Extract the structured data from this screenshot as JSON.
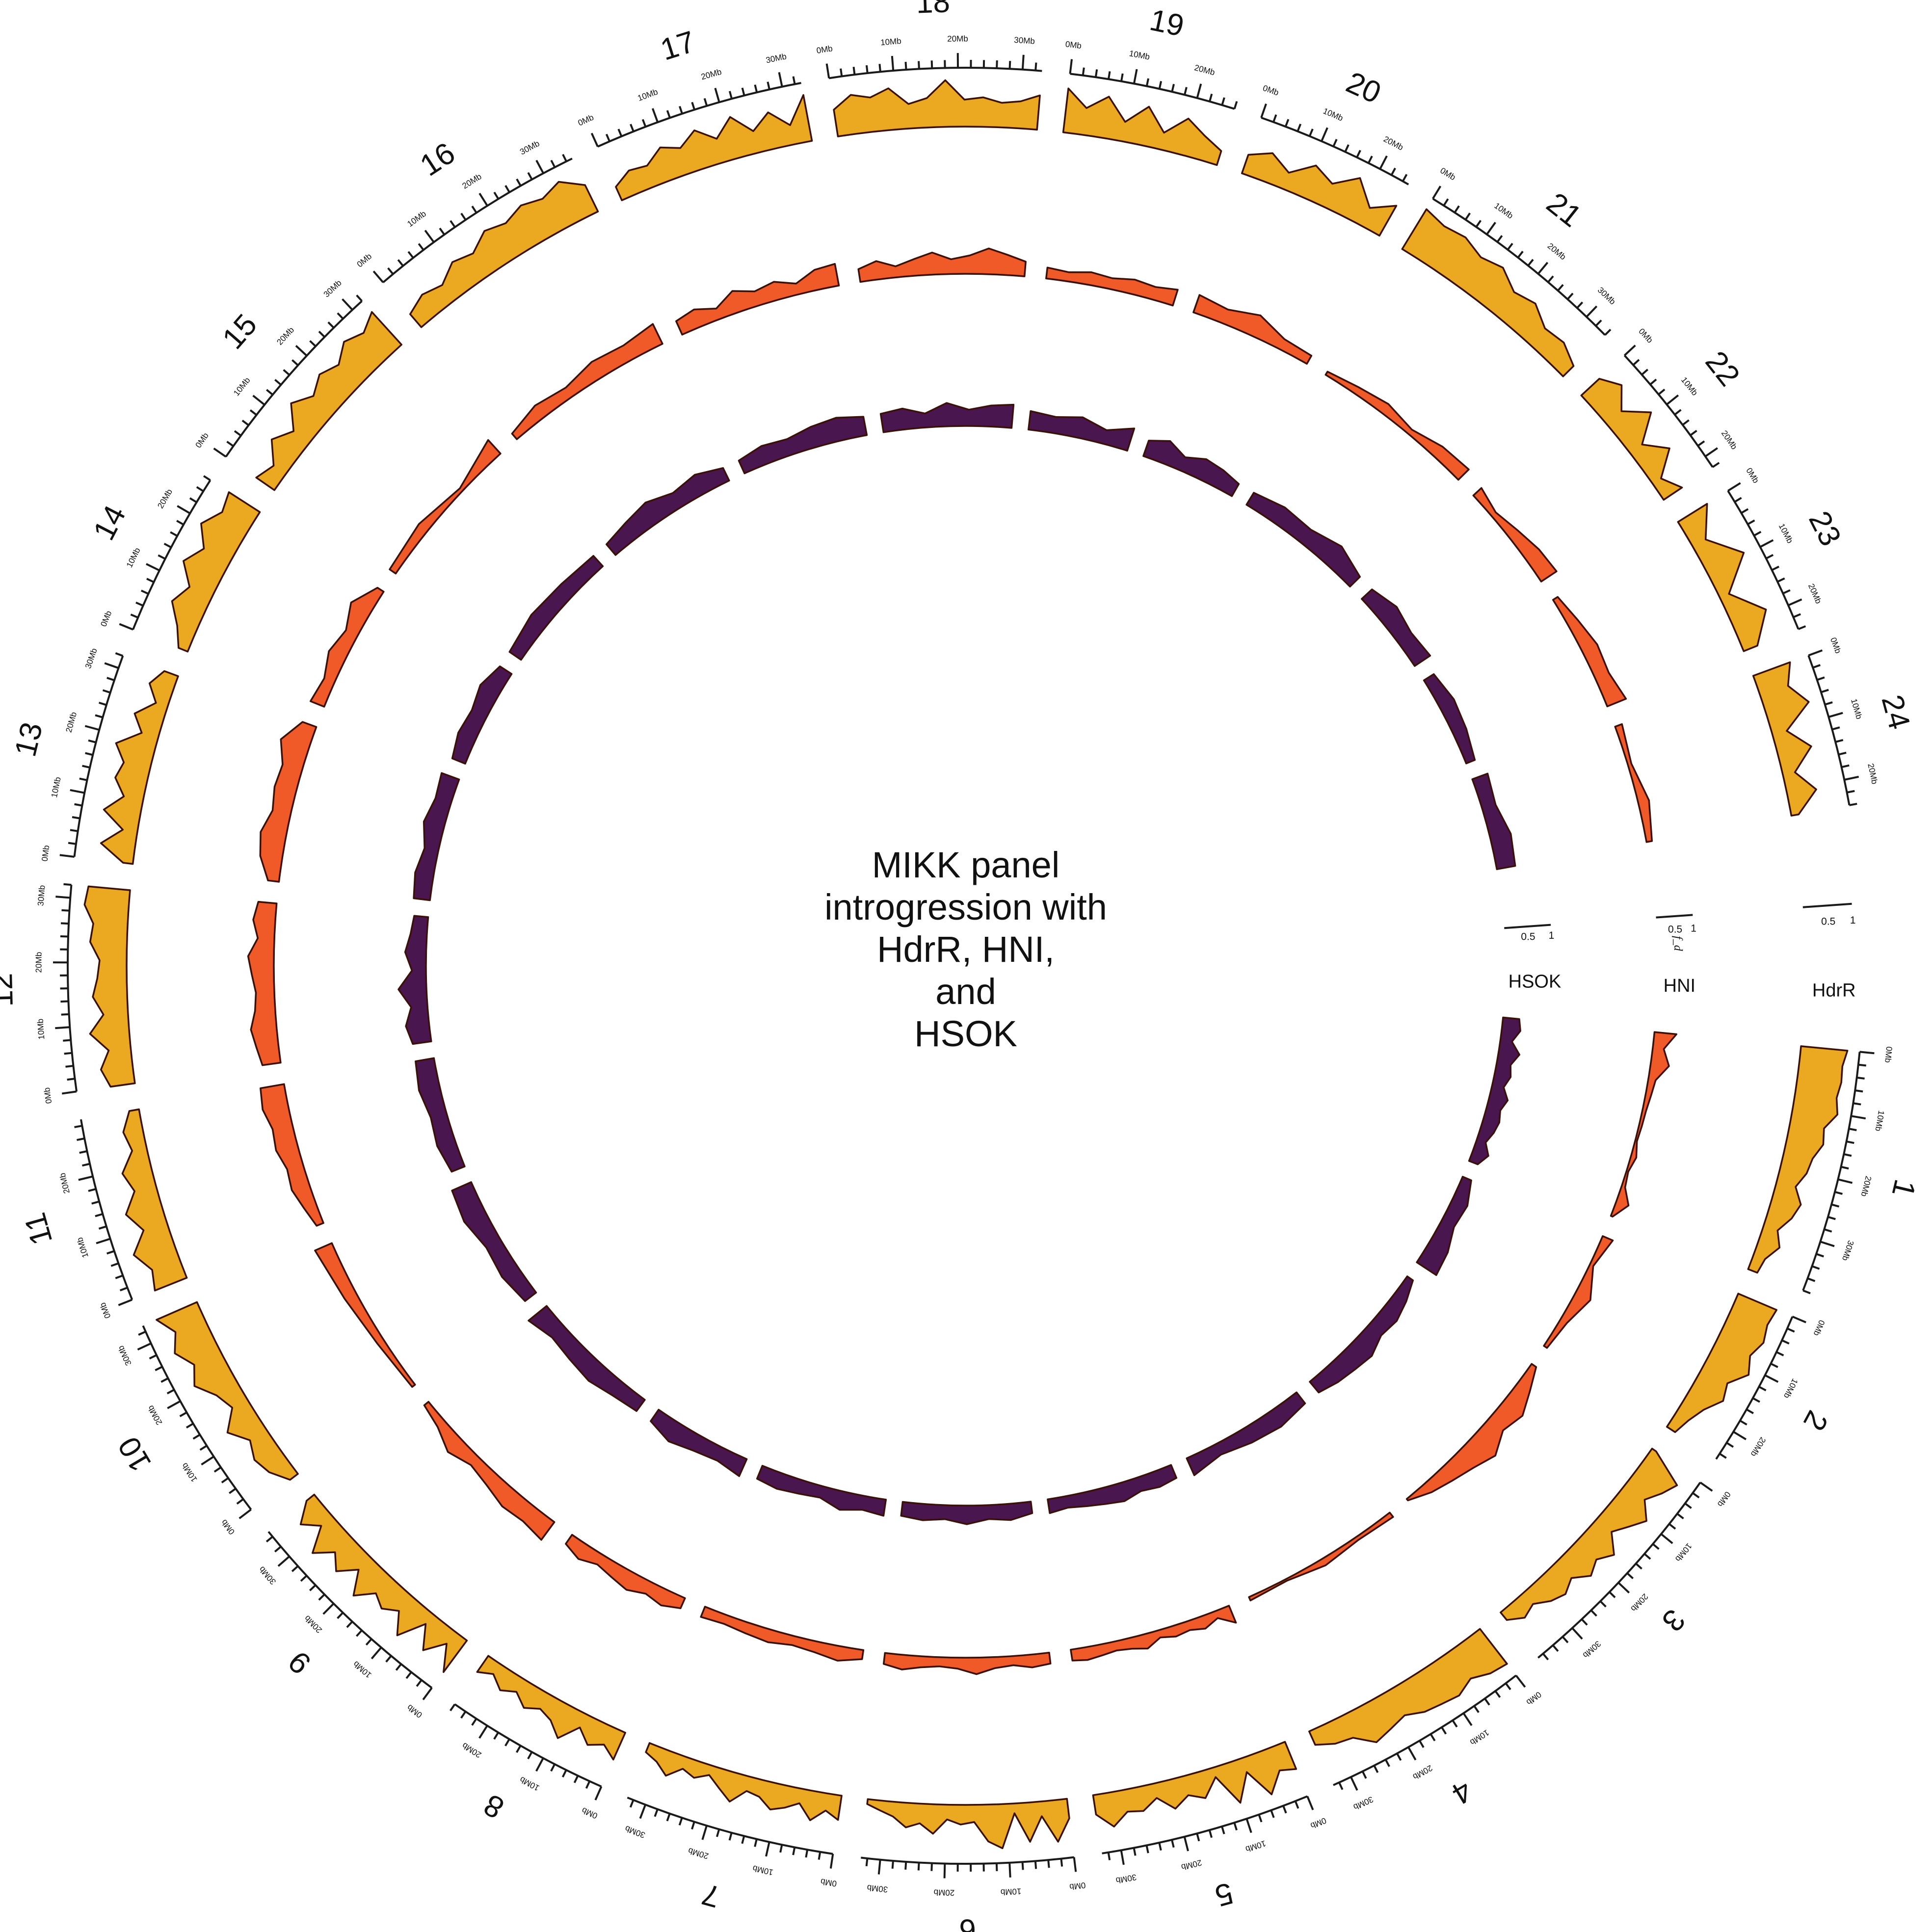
{
  "title_lines": [
    "MIKK panel",
    "introgression with",
    "HdrR, HNI,",
    "and",
    "HSOK"
  ],
  "chart_data": {
    "type": "area",
    "layout": "circular",
    "title": "MIKK panel introgression with HdrR, HNI, and HSOK",
    "ylabel": "f_d",
    "ylim": [
      0,
      1
    ],
    "y_ticks": [
      "0.5",
      "1"
    ],
    "position_unit": "Mb",
    "tick_label_suffix": "Mb",
    "chromosomes": [
      {
        "name": "1",
        "length_mb": 38
      },
      {
        "name": "2",
        "length_mb": 25
      },
      {
        "name": "3",
        "length_mb": 37
      },
      {
        "name": "4",
        "length_mb": 33
      },
      {
        "name": "5",
        "length_mb": 33
      },
      {
        "name": "6",
        "length_mb": 33
      },
      {
        "name": "7",
        "length_mb": 33
      },
      {
        "name": "8",
        "length_mb": 26
      },
      {
        "name": "9",
        "length_mb": 35
      },
      {
        "name": "10",
        "length_mb": 33
      },
      {
        "name": "11",
        "length_mb": 29
      },
      {
        "name": "12",
        "length_mb": 32
      },
      {
        "name": "13",
        "length_mb": 32
      },
      {
        "name": "14",
        "length_mb": 26
      },
      {
        "name": "15",
        "length_mb": 32
      },
      {
        "name": "16",
        "length_mb": 35
      },
      {
        "name": "17",
        "length_mb": 33
      },
      {
        "name": "18",
        "length_mb": 33
      },
      {
        "name": "19",
        "length_mb": 26
      },
      {
        "name": "20",
        "length_mb": 25
      },
      {
        "name": "21",
        "length_mb": 34
      },
      {
        "name": "22",
        "length_mb": 22
      },
      {
        "name": "23",
        "length_mb": 24
      },
      {
        "name": "24",
        "length_mb": 24
      }
    ],
    "series": [
      {
        "name": "HdrR",
        "color": "#eba821",
        "values": [
          [
            0.95,
            0.88,
            0.9,
            0.85,
            0.92,
            0.7,
            0.75,
            0.6,
            0.55,
            0.4,
            0.6,
            0.5,
            0.3,
            0.45,
            0.25,
            0.2
          ],
          [
            0.85,
            0.8,
            0.88,
            0.75,
            0.9,
            0.6,
            0.7,
            0.45,
            0.3,
            0.2
          ],
          [
            0.1,
            0.85,
            0.7,
            0.5,
            0.8,
            0.6,
            0.4,
            0.75,
            0.55,
            0.7,
            0.45,
            0.6,
            0.5,
            0.3,
            0.4,
            0.2
          ],
          [
            0.9,
            0.85,
            0.7,
            0.85,
            0.8,
            0.75,
            0.6,
            0.7,
            0.8,
            0.5,
            0.45,
            0.3
          ],
          [
            0.6,
            0.5,
            0.9,
            0.3,
            0.85,
            0.2,
            0.55,
            0.4,
            0.6,
            0.3,
            0.5,
            0.45,
            0.7,
            0.4
          ],
          [
            0.4,
            0.85,
            0.3,
            0.8,
            0.2,
            0.9,
            0.75,
            0.35,
            0.4,
            0.3,
            0.6,
            0.4,
            0.5,
            0.3,
            0.2,
            0.1
          ],
          [
            0.5,
            0.35,
            0.6,
            0.3,
            0.45,
            0.55,
            0.35,
            0.3,
            0.6,
            0.4,
            0.2,
            0.35,
            0.25,
            0.5,
            0.3,
            0.2
          ],
          [
            0.6,
            0.4,
            0.55,
            0.3,
            0.7,
            0.45,
            0.35,
            0.5,
            0.3,
            0.45,
            0.25,
            0.4
          ],
          [
            0.8,
            0.3,
            0.7,
            0.25,
            0.8,
            0.4,
            0.6,
            0.45,
            0.8,
            0.35,
            0.7,
            0.45,
            0.8,
            0.3,
            0.6,
            0.2
          ],
          [
            0.2,
            0.45,
            0.55,
            0.4,
            0.7,
            0.35,
            0.5,
            0.8,
            0.6,
            0.85,
            0.65,
            0.9
          ],
          [
            0.7,
            0.6,
            0.85,
            0.5,
            0.75,
            0.45,
            0.6,
            0.3,
            0.4,
            0.2
          ],
          [
            0.5,
            0.65,
            0.45,
            0.8,
            0.5,
            0.7,
            0.6,
            0.55,
            0.75,
            0.7,
            0.9,
            0.85
          ],
          [
            0.2,
            0.7,
            0.3,
            0.75,
            0.4,
            0.65,
            0.55,
            0.8,
            0.35,
            0.6,
            0.25,
            0.5,
            0.3
          ],
          [
            0.2,
            0.4,
            0.7,
            0.5,
            0.85,
            0.6,
            0.9,
            0.65,
            0.75
          ],
          [
            0.45,
            0.3,
            0.65,
            0.4,
            0.8,
            0.55,
            0.75,
            0.6,
            0.85,
            0.7,
            0.9
          ],
          [
            0.35,
            0.5,
            0.4,
            0.65,
            0.55,
            0.8,
            0.7,
            0.85,
            0.75,
            0.9,
            0.6
          ],
          [
            0.3,
            0.5,
            0.45,
            0.7,
            0.55,
            0.8,
            0.5,
            0.85,
            0.45,
            0.75,
            0.4,
            0.95
          ],
          [
            0.55,
            0.8,
            0.7,
            0.85,
            0.5,
            0.6,
            0.95,
            0.55,
            0.6,
            0.5,
            0.55,
            0.7
          ],
          [
            0.9,
            0.55,
            0.85,
            0.4,
            0.8,
            0.35,
            0.75,
            0.5,
            0.3
          ],
          [
            0.4,
            0.6,
            0.35,
            0.7,
            0.5,
            0.85,
            0.4,
            0.7
          ],
          [
            0.95,
            0.85,
            0.9,
            0.75,
            0.85,
            0.6,
            0.7,
            0.45,
            0.5,
            0.3
          ],
          [
            0.5,
            0.75,
            0.4,
            0.85,
            0.3,
            0.7,
            0.2,
            0.45
          ],
          [
            0.7,
            0.3,
            0.85,
            0.2,
            0.75,
            0.3
          ],
          [
            0.8,
            0.6,
            0.9,
            0.3,
            0.7,
            0.25,
            0.6,
            0.15
          ]
        ]
      },
      {
        "name": "HNI",
        "color": "#f05a28",
        "values": [
          [
            0.6,
            0.3,
            0.5,
            0.2,
            0.15,
            0.1,
            0.08,
            0.05,
            0.15,
            0.05,
            0.1,
            0.35,
            0.05
          ],
          [
            0.3,
            0.1,
            0.45,
            0.2,
            0.1
          ],
          [
            0.15,
            0.4,
            0.65,
            0.5,
            0.8,
            0.6,
            0.45,
            0.3,
            0.05
          ],
          [
            0.15,
            0.1,
            0.2,
            0.05,
            0.1
          ],
          [
            0.5,
            0.2,
            0.35,
            0.25,
            0.3,
            0.2,
            0.4,
            0.3,
            0.25,
            0.3,
            0.35,
            0.3
          ],
          [
            0.3,
            0.35,
            0.25,
            0.3,
            0.45,
            0.3,
            0.25,
            0.3,
            0.4,
            0.3
          ],
          [
            0.25,
            0.4,
            0.3,
            0.25,
            0.35,
            0.3,
            0.25,
            0.3
          ],
          [
            0.3,
            0.45,
            0.35,
            0.5,
            0.4,
            0.3,
            0.45,
            0.3
          ],
          [
            0.6,
            0.5,
            0.55,
            0.4,
            0.3,
            0.5,
            0.25,
            0.15
          ],
          [
            0.1,
            0.2,
            0.35,
            0.5
          ],
          [
            0.2,
            0.35,
            0.5,
            0.45,
            0.6,
            0.55,
            0.7,
            0.65
          ],
          [
            0.5,
            0.6,
            0.7,
            0.55,
            0.5,
            0.6,
            0.7,
            0.45,
            0.6,
            0.5
          ],
          [
            0.3,
            0.6,
            0.7,
            0.5,
            0.6,
            0.55,
            0.8,
            0.4
          ],
          [
            0.4,
            0.3,
            0.5,
            0.35,
            0.6,
            0.2
          ],
          [
            0.2,
            0.3,
            0.1,
            0.5
          ],
          [
            0.2,
            0.4,
            0.3,
            0.5,
            0.45,
            0.6
          ],
          [
            0.4,
            0.5,
            0.3,
            0.6,
            0.4,
            0.5,
            0.3,
            0.55,
            0.6
          ],
          [
            0.35,
            0.5,
            0.3,
            0.45,
            0.6,
            0.4,
            0.5,
            0.7,
            0.55,
            0.4
          ],
          [
            0.3,
            0.25,
            0.35,
            0.3,
            0.4,
            0.35,
            0.45
          ],
          [
            0.5,
            0.4,
            0.6,
            0.3,
            0.25
          ],
          [
            0.1,
            0.2,
            0.3,
            0.15,
            0.35,
            0.4
          ],
          [
            0.3,
            0.15,
            0.3,
            0.45,
            0.5
          ],
          [
            0.15,
            0.3,
            0.45,
            0.4,
            0.55
          ],
          [
            0.2,
            0.1,
            0.3,
            0.15
          ]
        ]
      },
      {
        "name": "HSOK",
        "color": "#4a1650",
        "values": [
          [
            0.35,
            0.4,
            0.25,
            0.45,
            0.3,
            0.35,
            0.25,
            0.4,
            0.3,
            0.35,
            0.3,
            0.2,
            0.35,
            0.2
          ],
          [
            0.2,
            0.35,
            0.3,
            0.45,
            0.5
          ],
          [
            0.15,
            0.3,
            0.4,
            0.35,
            0.5,
            0.45,
            0.4,
            0.3
          ],
          [
            0.3,
            0.4,
            0.35,
            0.25,
            0.4
          ],
          [
            0.3,
            0.35,
            0.3,
            0.4,
            0.35,
            0.3,
            0.25,
            0.3
          ],
          [
            0.25,
            0.35,
            0.3,
            0.4,
            0.3,
            0.35,
            0.3
          ],
          [
            0.35,
            0.3,
            0.4,
            0.25,
            0.3,
            0.35,
            0.3
          ],
          [
            0.4,
            0.3,
            0.35,
            0.45,
            0.3
          ],
          [
            0.3,
            0.35,
            0.45,
            0.4,
            0.35,
            0.5
          ],
          [
            0.3,
            0.4,
            0.35,
            0.5,
            0.45
          ],
          [
            0.3,
            0.4,
            0.35,
            0.45,
            0.4
          ],
          [
            0.4,
            0.5,
            0.35,
            0.6,
            0.3,
            0.45,
            0.35,
            0.3
          ],
          [
            0.35,
            0.4,
            0.3,
            0.45,
            0.35,
            0.4
          ],
          [
            0.3,
            0.4,
            0.35,
            0.45,
            0.3
          ],
          [
            0.3,
            0.4,
            0.35,
            0.3
          ],
          [
            0.3,
            0.4,
            0.5,
            0.35,
            0.45,
            0.3
          ],
          [
            0.3,
            0.4,
            0.35,
            0.45,
            0.5,
            0.4
          ],
          [
            0.4,
            0.45,
            0.3,
            0.5,
            0.35,
            0.45,
            0.5
          ],
          [
            0.4,
            0.35,
            0.45,
            0.3,
            0.5
          ],
          [
            0.35,
            0.5,
            0.3,
            0.45,
            0.4,
            0.3
          ],
          [
            0.3,
            0.4,
            0.35,
            0.5,
            0.3
          ],
          [
            0.3,
            0.45,
            0.35,
            0.4
          ],
          [
            0.25,
            0.35,
            0.3,
            0.2
          ],
          [
            0.35,
            0.3,
            0.45,
            0.4
          ]
        ]
      }
    ],
    "track_labels": [
      "HSOK",
      "HNI",
      "HdrR"
    ]
  }
}
